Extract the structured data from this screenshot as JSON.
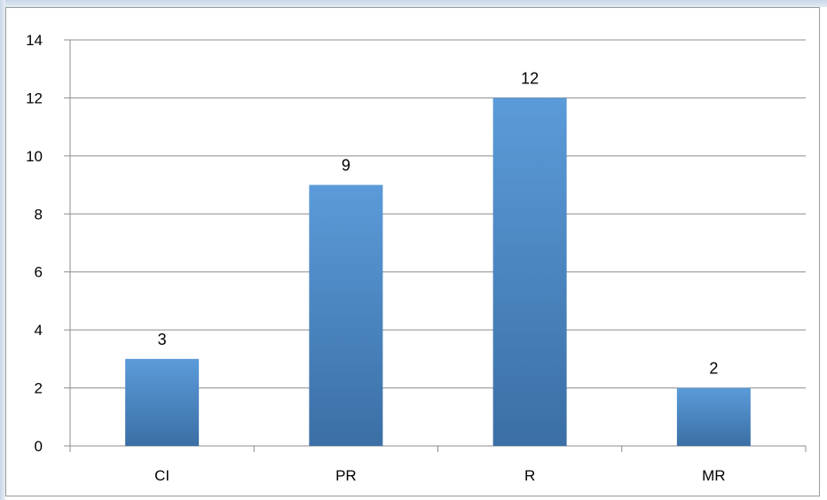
{
  "chart_data": {
    "type": "bar",
    "categories": [
      "CI",
      "PR",
      "R",
      "MR"
    ],
    "values": [
      3,
      9,
      12,
      2
    ],
    "data_labels": [
      "3",
      "9",
      "12",
      "2"
    ],
    "title": "",
    "xlabel": "",
    "ylabel": "",
    "ylim": [
      0,
      14
    ],
    "yticks": [
      0,
      2,
      4,
      6,
      8,
      10,
      12,
      14
    ],
    "ytick_labels": [
      "0",
      "2",
      "4",
      "6",
      "8",
      "10",
      "12",
      "14"
    ],
    "grid": true,
    "legend": "none",
    "colors": {
      "bar_light": "#5b9bd9",
      "bar_dark": "#3b6fa5",
      "grid": "#8c8c8c",
      "axis": "#8c8c8c"
    }
  }
}
